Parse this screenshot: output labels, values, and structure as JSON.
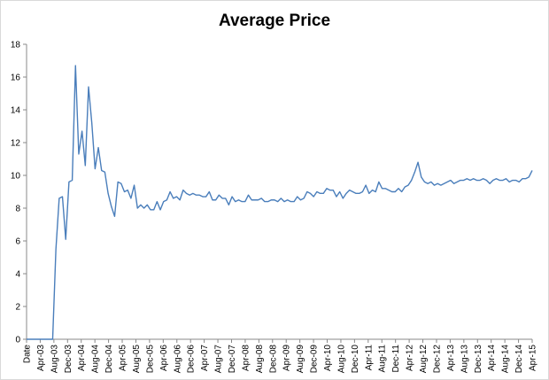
{
  "chart_data": {
    "type": "line",
    "title": "Average Price",
    "xlabel": "",
    "ylabel": "",
    "ylim": [
      0,
      18
    ],
    "y_ticks": [
      0,
      2,
      4,
      6,
      8,
      10,
      12,
      14,
      16,
      18
    ],
    "grid": false,
    "legend": "none",
    "x_ticks": [
      "Date",
      "Apr-03",
      "Aug-03",
      "Dec-03",
      "Apr-04",
      "Aug-04",
      "Dec-04",
      "Apr-05",
      "Aug-05",
      "Dec-05",
      "Apr-06",
      "Aug-06",
      "Dec-06",
      "Apr-07",
      "Aug-07",
      "Dec-07",
      "Apr-08",
      "Aug-08",
      "Dec-08",
      "Apr-09",
      "Aug-09",
      "Dec-09",
      "Apr-10",
      "Aug-10",
      "Dec-10",
      "Apr-11",
      "Aug-11",
      "Dec-11",
      "Apr-12",
      "Aug-12",
      "Dec-12",
      "Apr-13",
      "Aug-13",
      "Dec-13",
      "Apr-14",
      "Aug-14",
      "Dec-14",
      "Apr-15"
    ],
    "series": [
      {
        "color": "#4a7ebb",
        "values": [
          0,
          0,
          0,
          0,
          0,
          0,
          0,
          0,
          0,
          5.5,
          8.6,
          8.7,
          6.1,
          9.6,
          9.7,
          16.7,
          11.3,
          12.7,
          10.6,
          15.4,
          13.2,
          10.4,
          11.7,
          10.3,
          10.2,
          8.9,
          8.1,
          7.5,
          9.6,
          9.5,
          9.0,
          9.1,
          8.6,
          9.4,
          8.0,
          8.2,
          8.0,
          8.2,
          7.9,
          7.9,
          8.4,
          7.9,
          8.4,
          8.5,
          9.0,
          8.6,
          8.7,
          8.5,
          9.1,
          8.9,
          8.8,
          8.9,
          8.8,
          8.8,
          8.7,
          8.7,
          9.0,
          8.5,
          8.5,
          8.8,
          8.6,
          8.6,
          8.2,
          8.7,
          8.4,
          8.5,
          8.4,
          8.4,
          8.8,
          8.5,
          8.5,
          8.5,
          8.6,
          8.4,
          8.4,
          8.5,
          8.5,
          8.4,
          8.6,
          8.4,
          8.5,
          8.4,
          8.4,
          8.7,
          8.5,
          8.6,
          9.0,
          8.9,
          8.7,
          9.0,
          8.9,
          8.9,
          9.2,
          9.1,
          9.1,
          8.7,
          9.0,
          8.6,
          8.9,
          9.1,
          9.0,
          8.9,
          8.9,
          9.0,
          9.4,
          8.9,
          9.1,
          9.0,
          9.6,
          9.2,
          9.2,
          9.1,
          9.0,
          9.0,
          9.2,
          9.0,
          9.3,
          9.4,
          9.7,
          10.2,
          10.8,
          9.9,
          9.6,
          9.5,
          9.6,
          9.4,
          9.5,
          9.4,
          9.5,
          9.6,
          9.7,
          9.5,
          9.6,
          9.7,
          9.7,
          9.8,
          9.7,
          9.8,
          9.7,
          9.7,
          9.8,
          9.7,
          9.5,
          9.7,
          9.8,
          9.7,
          9.7,
          9.8,
          9.6,
          9.7,
          9.7,
          9.6,
          9.8,
          9.8,
          9.9,
          10.3
        ]
      }
    ]
  }
}
